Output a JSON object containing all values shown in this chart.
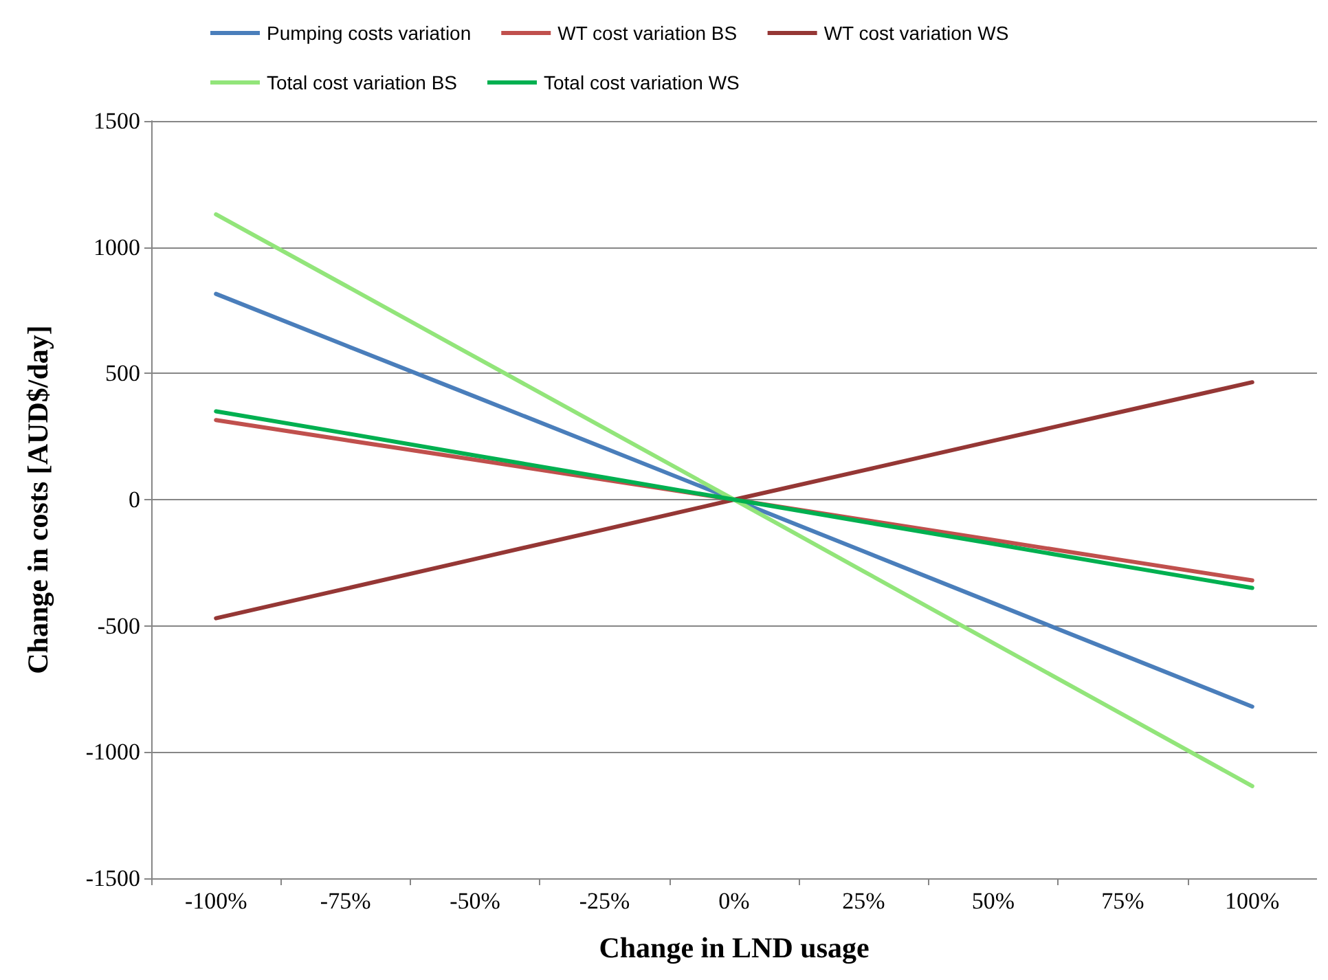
{
  "chart_data": {
    "type": "line",
    "xlabel": "Change in LND usage",
    "ylabel": "Change in costs [AUD$/day]",
    "categories": [
      "-100%",
      "-75%",
      "-50%",
      "-25%",
      "0%",
      "25%",
      "50%",
      "75%",
      "100%"
    ],
    "series": [
      {
        "name": "Pumping costs variation",
        "color": "#4a7ebb",
        "values": [
          815,
          611,
          408,
          204,
          0,
          -205,
          -410,
          -615,
          -820
        ]
      },
      {
        "name": "WT cost variation BS",
        "color": "#c0504d",
        "values": [
          315,
          236,
          158,
          79,
          0,
          -80,
          -160,
          -240,
          -320
        ]
      },
      {
        "name": "WT cost variation WS",
        "color": "#953735",
        "values": [
          -470,
          -353,
          -235,
          -118,
          0,
          116,
          233,
          349,
          465
        ]
      },
      {
        "name": "Total cost variation BS",
        "color": "#92e57a",
        "values": [
          1130,
          848,
          565,
          283,
          0,
          -284,
          -568,
          -851,
          -1135
        ]
      },
      {
        "name": "Total cost variation WS",
        "color": "#00b050",
        "values": [
          350,
          263,
          175,
          88,
          0,
          -88,
          -175,
          -263,
          -350
        ]
      }
    ],
    "ylim": [
      -1500,
      1500
    ],
    "yticks": [
      -1500,
      -1000,
      -500,
      0,
      500,
      1000,
      1500
    ],
    "grid": "y",
    "legend": "top",
    "marker": "none",
    "line_style": "solid"
  }
}
